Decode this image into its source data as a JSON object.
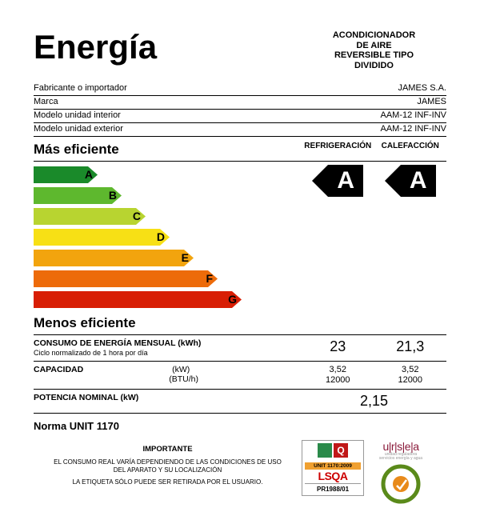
{
  "title": "Energía",
  "product_type": "ACONDICIONADOR DE AIRE REVERSIBLE TIPO DIVIDIDO",
  "info": [
    {
      "k": "Fabricante o importador",
      "v": "JAMES S.A."
    },
    {
      "k": "Marca",
      "v": "JAMES"
    },
    {
      "k": "Modelo unidad interior",
      "v": "AAM-12 INF-INV"
    },
    {
      "k": "Modelo unidad exterior",
      "v": "AAM-12 INF-INV"
    }
  ],
  "more_eff": "Más eficiente",
  "less_eff": "Menos eficiente",
  "col1": "REFRIGERACIÓN",
  "col2": "CALEFACCIÓN",
  "scale": {
    "letters": [
      "A",
      "B",
      "C",
      "D",
      "E",
      "F",
      "G"
    ],
    "colors": [
      "#1a8a2a",
      "#5eb82e",
      "#b8d430",
      "#f7e015",
      "#f2a40e",
      "#ed6b0a",
      "#d81e05"
    ],
    "widths": [
      80,
      110,
      140,
      170,
      200,
      230,
      260
    ]
  },
  "rating1": "A",
  "rating2": "A",
  "rows": [
    {
      "label": "CONSUMO DE ENERGÍA MENSUAL  (kWh)",
      "sub": "Ciclo normalizado de 1 hora por día",
      "v1": "23",
      "v2": "21,3",
      "big": true
    },
    {
      "label": "CAPACIDAD",
      "sub2a": "(kW)",
      "sub2b": "(BTU/h)",
      "v1a": "3,52",
      "v1b": "12000",
      "v2a": "3,52",
      "v2b": "12000",
      "big": false
    },
    {
      "label": "POTENCIA NOMINAL  (kW)",
      "single": "2,15",
      "big": true
    }
  ],
  "norma": "Norma UNIT 1170",
  "important_head": "IMPORTANTE",
  "important_1": "EL CONSUMO REAL VARÍA DEPENDIENDO DE LAS CONDICIONES DE USO DEL APARATO Y SU LOCALIZACIÓN",
  "important_2": "LA ETIQUETA SÓLO PUEDE SER RETIRADA POR EL USUARIO.",
  "cert": {
    "unit": "UNIT 1170:2009",
    "lsqa": "LSQA",
    "pr": "PR1988/01"
  },
  "ursea": "u|r|s|e|a"
}
